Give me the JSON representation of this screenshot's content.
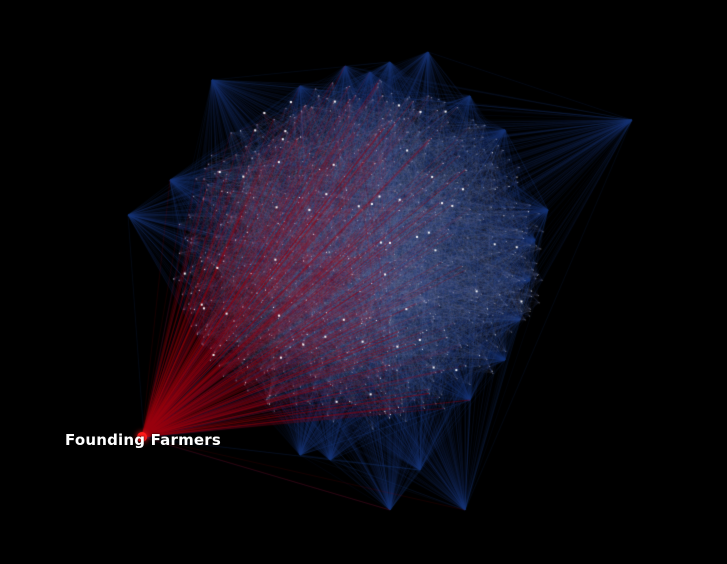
{
  "graph": {
    "highlighted_node": {
      "label": "Founding Farmers"
    },
    "colors": {
      "background": "#000000",
      "highlight_edges": "#a00010",
      "network_edges": "#1a3a7a",
      "inner_edges": "#9a9aa8",
      "nodes": "#ffffff",
      "highlight_node": "#ff1a1a",
      "label": "#ffffff"
    }
  }
}
